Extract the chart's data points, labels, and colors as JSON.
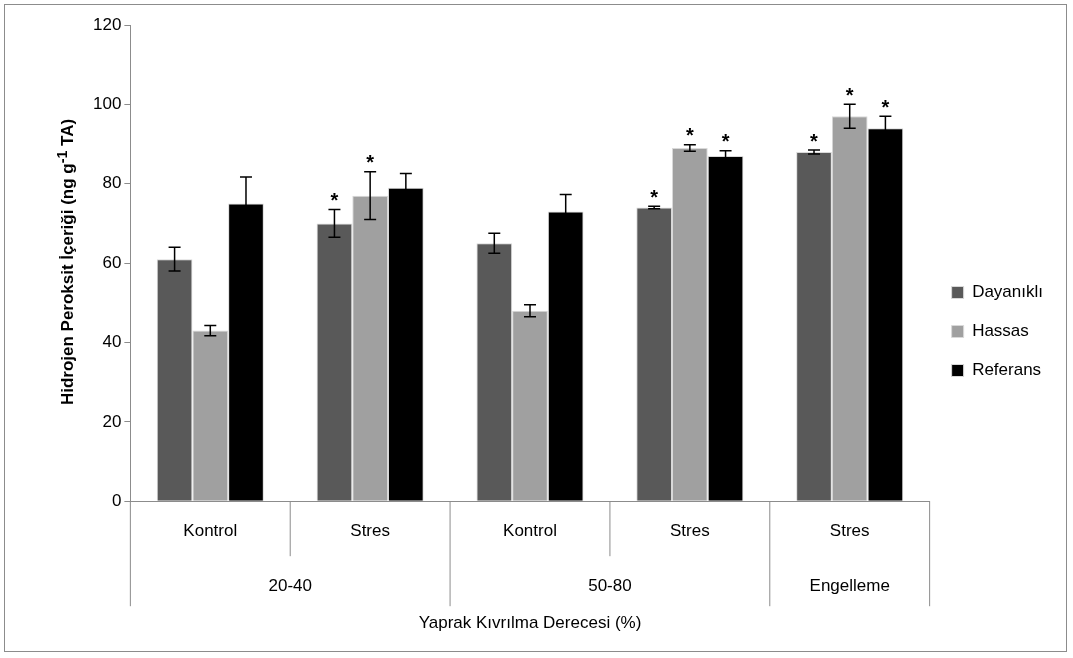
{
  "chart_data": {
    "type": "bar",
    "ylabel": "Hidrojen Peroksit İçeriği (ng g$^{-1}$ TA)",
    "xlabel": "Yaprak Kıvrılma Derecesi (%)",
    "categories": [
      "Kontrol",
      "Stres",
      "Kontrol",
      "Stres",
      "Stres"
    ],
    "series": [
      {
        "name": "Dayanıklı",
        "color": "#595959",
        "values": [
          61,
          70,
          65,
          74,
          88
        ],
        "errors": [
          3,
          3.5,
          2.5,
          0.3,
          0.5
        ],
        "value_labels": [
          null,
          "*",
          null,
          "*",
          "*"
        ]
      },
      {
        "name": "Hassas",
        "color": "#a0a0a0",
        "values": [
          43,
          77,
          48,
          89,
          97
        ],
        "errors": [
          1.3,
          6,
          1.5,
          0.8,
          3
        ],
        "value_labels": [
          null,
          "*",
          null,
          "*",
          "*"
        ]
      },
      {
        "name": "Referans",
        "color": "#000000",
        "values": [
          75,
          79,
          73,
          87,
          94
        ],
        "errors": [
          6.7,
          3.6,
          4.3,
          1.3,
          3
        ],
        "value_labels": [
          null,
          null,
          null,
          "*",
          "*"
        ]
      }
    ],
    "annotations": [
      "20-40",
      "50-80",
      "Engelleme"
    ],
    "ylim": [
      0,
      120
    ],
    "yticks": [
      0,
      20,
      40,
      60,
      80,
      100,
      120
    ],
    "grid": false,
    "legend": "right"
  }
}
